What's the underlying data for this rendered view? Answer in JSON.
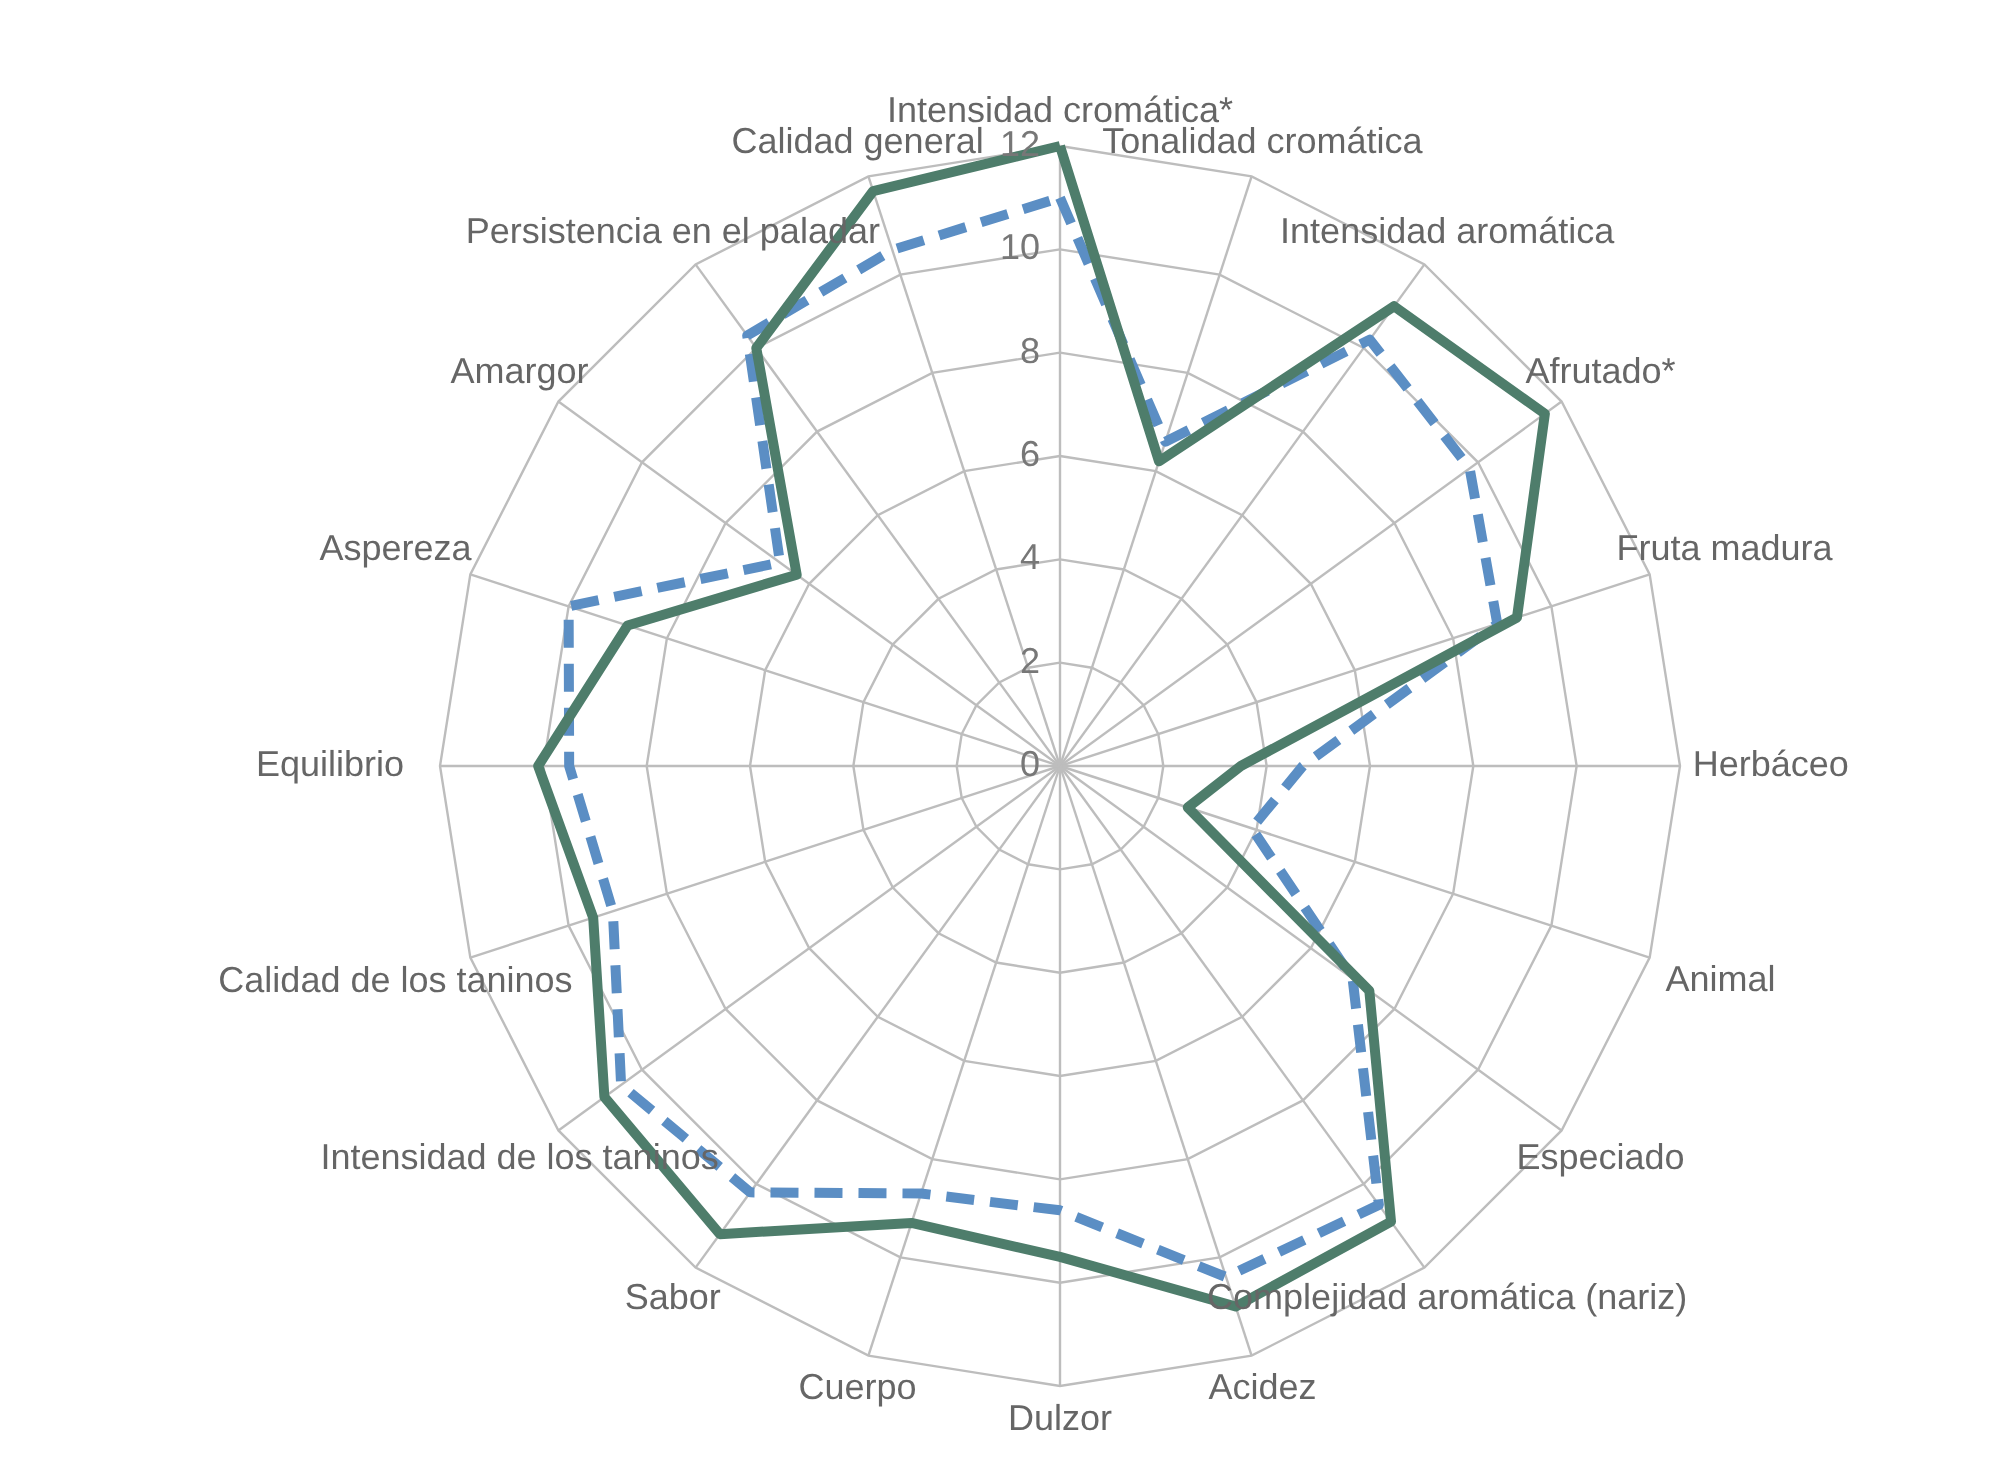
{
  "chart_data": {
    "type": "radar",
    "categories": [
      "Intensidad cromática*",
      "Tonalidad cromática",
      "Intensidad aromática",
      "Afrutado*",
      "Fruta madura",
      "Herbáceo",
      "Animal",
      "Especiado",
      "Complejidad aromática (nariz)",
      "Acidez",
      "Dulzor",
      "Cuerpo",
      "Sabor",
      "Intensidad de los taninos",
      "Calidad de los taninos",
      "Equilibrio",
      "Aspereza",
      "Amargor",
      "Persistencia en el paladar",
      "Calidad general"
    ],
    "series": [
      {
        "color": "#5b8ec4",
        "line_style": "dashed",
        "values": [
          11.0,
          6.6,
          10.2,
          9.8,
          8.9,
          4.7,
          3.9,
          7.0,
          10.5,
          10.4,
          8.6,
          8.7,
          10.2,
          10.5,
          9.1,
          9.5,
          10.0,
          6.7,
          10.3,
          10.5
        ]
      },
      {
        "color": "#4e7d6b",
        "line_style": "solid",
        "values": [
          12.0,
          6.2,
          11.0,
          11.6,
          9.3,
          3.5,
          2.6,
          7.4,
          10.9,
          11.0,
          9.5,
          9.3,
          11.2,
          10.9,
          9.5,
          10.1,
          8.8,
          6.3,
          10.0,
          11.7
        ]
      }
    ],
    "ylim": [
      0,
      12
    ],
    "yticks": [
      0,
      2,
      4,
      6,
      8,
      10,
      12
    ],
    "grid": true,
    "marker": "none"
  }
}
